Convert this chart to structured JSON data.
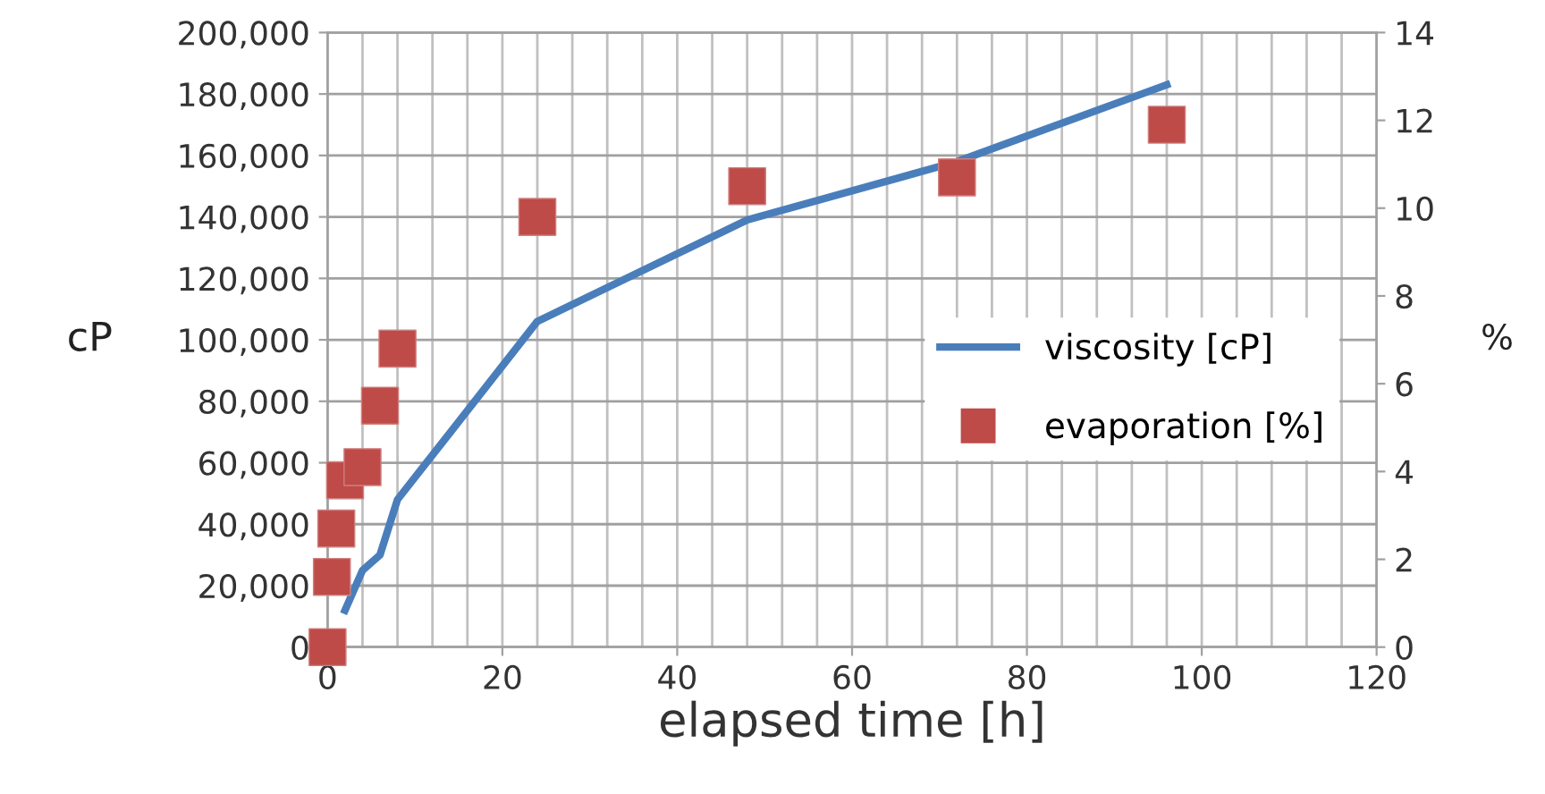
{
  "chart_data": {
    "type": "line",
    "xlabel": "elapsed time [h]",
    "ylabel": "cP",
    "y2label": "%",
    "xlim": [
      0,
      120
    ],
    "xticks": [
      0,
      20,
      40,
      60,
      80,
      100,
      120
    ],
    "ylim": [
      0,
      200000
    ],
    "yticks": [
      0,
      {
        "value": 20000,
        "label": "20,000"
      },
      {
        "value": 40000,
        "label": "40,000"
      },
      {
        "value": 60000,
        "label": "60,000"
      },
      {
        "value": 80000,
        "label": "80,000"
      },
      {
        "value": 100000,
        "label": "100,000"
      },
      {
        "value": 120000,
        "label": "120,000"
      },
      {
        "value": 140000,
        "label": "140,000"
      },
      {
        "value": 160000,
        "label": "160,000"
      },
      {
        "value": 180000,
        "label": "180,000"
      },
      {
        "value": 200000,
        "label": "200,000"
      }
    ],
    "y2lim": [
      0,
      14
    ],
    "y2ticks": [
      0,
      2,
      4,
      6,
      8,
      10,
      12,
      14
    ],
    "grid": true,
    "legend": "right",
    "series": [
      {
        "name": "viscosity [cP]",
        "color": "#4a7ebb",
        "x": [
          2,
          4,
          6,
          8,
          24,
          48,
          72,
          96
        ],
        "values": [
          12000,
          25000,
          30000,
          48000,
          106000,
          139000,
          158000,
          183000
        ]
      },
      {
        "name": "evaporation [%]",
        "type": "scatter",
        "axis": "y2",
        "marker": "square",
        "color": "#be4b48",
        "x": [
          0,
          0.5,
          1,
          2,
          4,
          6,
          8,
          24,
          48,
          72,
          96
        ],
        "values": [
          0,
          1.6,
          2.7,
          3.8,
          4.1,
          5.5,
          6.8,
          9.8,
          10.5,
          10.7,
          11.9
        ]
      }
    ]
  }
}
